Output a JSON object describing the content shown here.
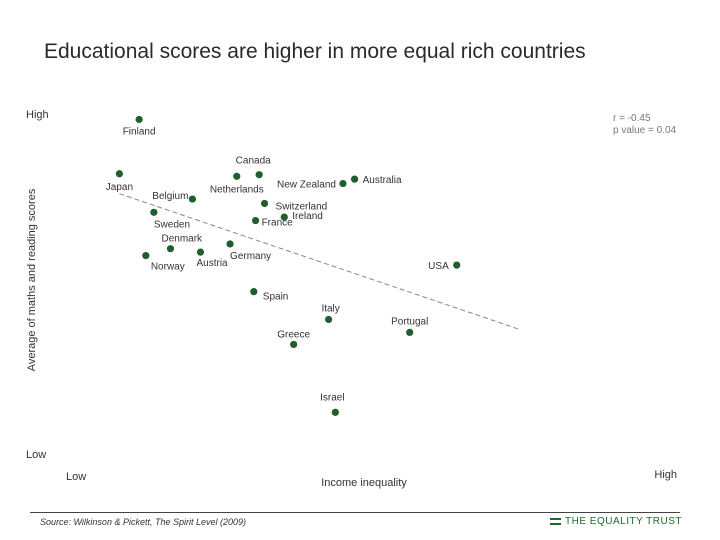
{
  "chart_data": {
    "type": "scatter",
    "title": "Educational scores are higher in more equal rich countries",
    "xlabel": "Income inequality",
    "ylabel": "Average of maths and reading scores",
    "x_axis_labels": {
      "low": "Low",
      "high": "High"
    },
    "y_axis_labels": {
      "high": "High",
      "low": "Low"
    },
    "xlim": [
      0,
      100
    ],
    "ylim": [
      0,
      100
    ],
    "grid": false,
    "marker_color": "#1f5e2e",
    "trendline": {
      "x": [
        5,
        94
      ],
      "y": [
        75.1,
        32.3
      ],
      "style": "dashed",
      "color": "#888888"
    },
    "stats": {
      "r": "r = -0.45",
      "p": "p value = 0.04"
    },
    "points": [
      {
        "label": "Finland",
        "x": 9.4,
        "y": 98.6
      },
      {
        "label": "Japan",
        "x": 5.0,
        "y": 81.4
      },
      {
        "label": "Canada",
        "x": 36.2,
        "y": 81.1
      },
      {
        "label": "Netherlands",
        "x": 31.2,
        "y": 80.6
      },
      {
        "label": "Australia",
        "x": 57.5,
        "y": 79.7
      },
      {
        "label": "New Zealand",
        "x": 54.9,
        "y": 78.3
      },
      {
        "label": "Belgium",
        "x": 21.3,
        "y": 73.4
      },
      {
        "label": "Switzerland",
        "x": 37.4,
        "y": 72.0
      },
      {
        "label": "Sweden",
        "x": 12.7,
        "y": 69.2
      },
      {
        "label": "Ireland",
        "x": 41.8,
        "y": 67.7
      },
      {
        "label": "France",
        "x": 35.4,
        "y": 66.6
      },
      {
        "label": "Denmark",
        "x": 16.4,
        "y": 57.7
      },
      {
        "label": "Germany",
        "x": 29.7,
        "y": 59.2
      },
      {
        "label": "Austria",
        "x": 23.1,
        "y": 56.6
      },
      {
        "label": "Norway",
        "x": 10.9,
        "y": 55.5
      },
      {
        "label": "USA",
        "x": 80.3,
        "y": 52.5
      },
      {
        "label": "Spain",
        "x": 35.0,
        "y": 44.1
      },
      {
        "label": "Italy",
        "x": 51.7,
        "y": 35.3
      },
      {
        "label": "Portugal",
        "x": 69.8,
        "y": 31.2
      },
      {
        "label": "Greece",
        "x": 43.9,
        "y": 27.4
      },
      {
        "label": "Israel",
        "x": 53.2,
        "y": 5.9
      }
    ],
    "source": "Source: Wilkinson & Pickett, The Spirit Level (2009)",
    "brand": "THE EQUALITY TRUST"
  }
}
